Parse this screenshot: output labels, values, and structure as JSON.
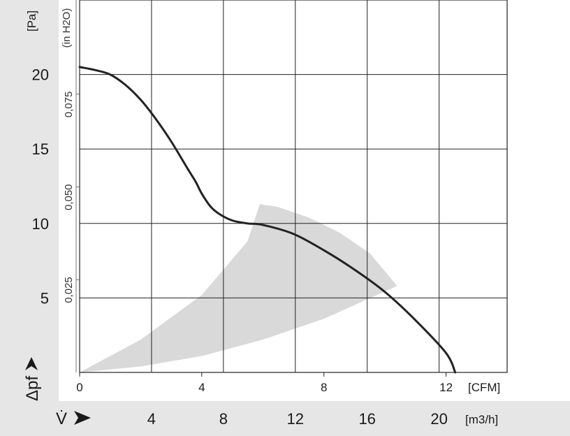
{
  "chart_data": {
    "type": "line",
    "title": "",
    "y_axis": {
      "unit_label": "[Pa]",
      "symbol": "Δpf",
      "range": [
        0,
        25
      ],
      "ticks": [
        5,
        10,
        15,
        20
      ],
      "tick_labels": [
        "5",
        "10",
        "15",
        "20"
      ]
    },
    "y2_axis": {
      "unit_label": "(in H2O)",
      "ticks": [
        0.025,
        0.05,
        0.075
      ],
      "tick_labels": [
        "0,025",
        "0,050",
        "0,075"
      ]
    },
    "x_axis": {
      "unit_label": "[CFM]",
      "range": [
        0,
        14
      ],
      "ticks": [
        0,
        4,
        8,
        12
      ],
      "tick_labels": [
        "0",
        "4",
        "8",
        "12"
      ]
    },
    "x2_axis": {
      "unit_label": "[m3/h]",
      "symbol": "V̇",
      "ticks": [
        4,
        8,
        12,
        16,
        20
      ],
      "tick_labels": [
        "4",
        "8",
        "12",
        "16",
        "20"
      ]
    },
    "grid": true,
    "series": [
      {
        "x": [
          0,
          0.5,
          1.0,
          1.5,
          2.0,
          2.5,
          3.0,
          3.5,
          3.8,
          4.0,
          4.3,
          4.6,
          5.0,
          5.5,
          6.0,
          7.0,
          8.0,
          9.0,
          10.0,
          11.0,
          12.0,
          12.3
        ],
        "y": [
          20.5,
          20.3,
          20.0,
          19.3,
          18.3,
          17.0,
          15.5,
          13.8,
          12.8,
          12.0,
          11.1,
          10.6,
          10.2,
          10.0,
          9.9,
          9.3,
          8.2,
          6.9,
          5.4,
          3.5,
          1.3,
          0.0
        ]
      }
    ],
    "shaded_region": {
      "upper": {
        "x": [
          0,
          2,
          4,
          5.5,
          5.9,
          6.5,
          7.5,
          8.5,
          9.5,
          10.4
        ],
        "y": [
          0,
          2.2,
          5.2,
          8.8,
          11.3,
          11.1,
          10.4,
          9.4,
          8.0,
          5.8
        ]
      },
      "lower": {
        "x": [
          0,
          2,
          4,
          6,
          8,
          10.4
        ],
        "y": [
          0,
          0.4,
          1.1,
          2.2,
          3.6,
          5.8
        ]
      },
      "color": "#d9d9d9"
    },
    "colors": {
      "curve": "#222222",
      "grid": "#222222",
      "panel": "#e6e6e6"
    }
  }
}
